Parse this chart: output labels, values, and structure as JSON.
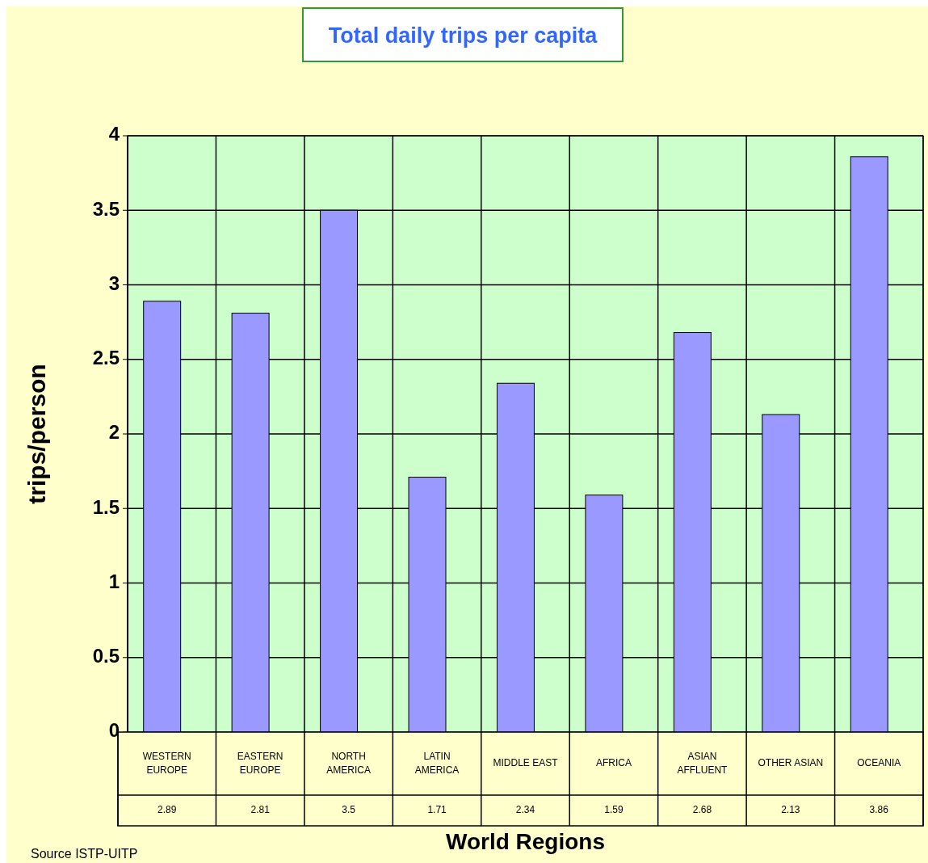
{
  "chart_data": {
    "type": "bar",
    "title": "Total daily trips per capita",
    "xlabel": "World Regions",
    "ylabel": "trips/person",
    "categories": [
      "WESTERN EUROPE",
      "EASTERN EUROPE",
      "NORTH AMERICA",
      "LATIN AMERICA",
      "MIDDLE EAST",
      "AFRICA",
      "ASIAN AFFLUENT",
      "OTHER ASIAN",
      "OCEANIA"
    ],
    "values": [
      2.89,
      2.81,
      3.5,
      1.71,
      2.34,
      1.59,
      2.68,
      2.13,
      3.86
    ],
    "color": "#9999ff",
    "ylim": [
      0,
      4
    ],
    "yticks": [
      0,
      0.5,
      1,
      1.5,
      2,
      2.5,
      3,
      3.5,
      4
    ],
    "grid": true,
    "data_labels": true,
    "annotations": [
      "Source ISTP-UITP"
    ]
  }
}
